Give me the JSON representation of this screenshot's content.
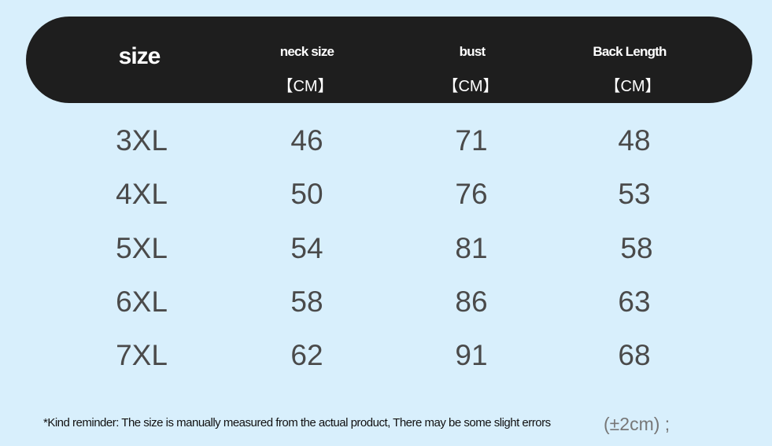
{
  "header": {
    "size": "size",
    "columns": [
      {
        "label": "neck size",
        "unit": "【CM】"
      },
      {
        "label": "bust",
        "unit": "【CM】"
      },
      {
        "label": "Back Length",
        "unit": "【CM】"
      }
    ]
  },
  "rows": [
    {
      "size": "3XL",
      "neck": "46",
      "bust": "71",
      "back": "48"
    },
    {
      "size": "4XL",
      "neck": "50",
      "bust": "76",
      "back": "53"
    },
    {
      "size": "5XL",
      "neck": "54",
      "bust": "81",
      "back": "58"
    },
    {
      "size": "6XL",
      "neck": "58",
      "bust": "86",
      "back": "63"
    },
    {
      "size": "7XL",
      "neck": "62",
      "bust": "91",
      "back": "68"
    }
  ],
  "note": "*Kind reminder: The size is manually measured from the actual product, There may be some slight errors",
  "tolerance": "(±2cm) ;",
  "colors": {
    "background": "#d8effc",
    "header": "#1e1e1e"
  }
}
